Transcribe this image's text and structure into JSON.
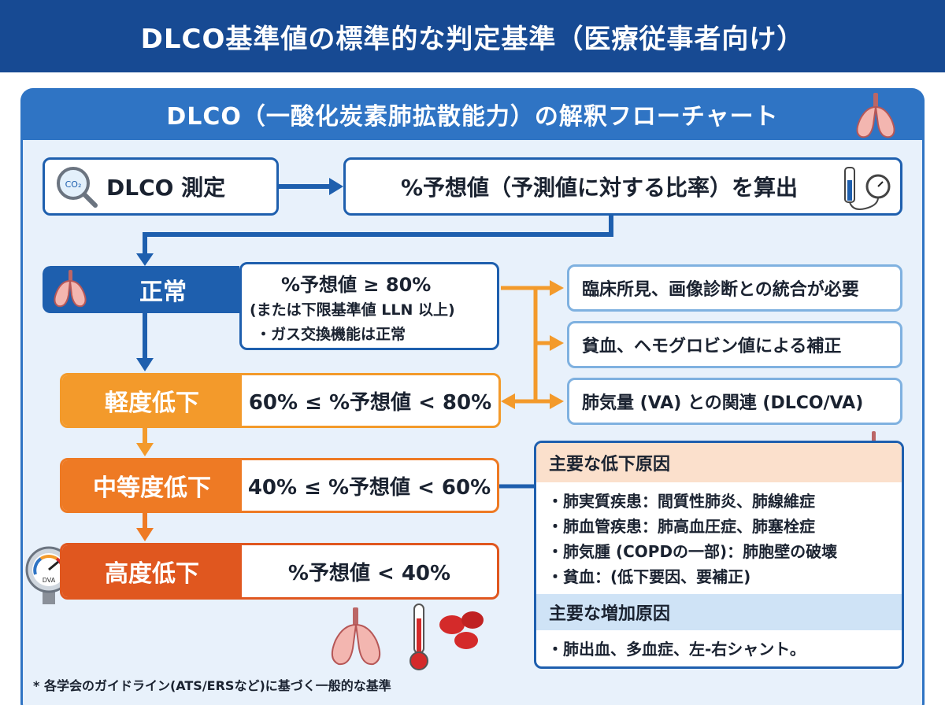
{
  "header": {
    "title": "DLCO基準値の標準的な判定基準（医療従事者向け）"
  },
  "panel": {
    "title": "DLCO（一酸化炭素肺拡散能力）の解釈フローチャート"
  },
  "steps": {
    "measure": "DLCO 測定",
    "calc": "%予想値（予測値に対する比率）を算出",
    "co2_label": "CO₂"
  },
  "grades": [
    {
      "label": "正常",
      "lines": [
        "%予想値 ≥ 80%",
        "(または下限基準値 LLN 以上)",
        "・ガス交換機能は正常"
      ],
      "color": "#1e5fae"
    },
    {
      "label": "軽度低下",
      "value": "60% ≤ %予想値 < 80%",
      "color": "#f39a2b"
    },
    {
      "label": "中等度低下",
      "value": "40% ≤ %予想値 < 60%",
      "color": "#ee7a24"
    },
    {
      "label": "高度低下",
      "value": "%予想値 < 40%",
      "color": "#e0571f"
    }
  ],
  "notes": [
    "臨床所見、画像診断との統合が必要",
    "貧血、ヘモグロビン値による補正",
    "肺気量 (VA) との関連 (DLCO/VA)"
  ],
  "causes": {
    "decrease_title": "主要な低下原因",
    "decrease_items": [
      "・肺実質疾患：間質性肺炎、肺線維症",
      "・肺血管疾患：肺高血圧症、肺塞栓症",
      "・肺気腫 (COPDの一部)：肺胞壁の破壊",
      "・貧血：(低下要因、要補正)"
    ],
    "increase_title": "主要な増加原因",
    "increase_items": [
      "・肺出血、多血症、左-右シャント。"
    ]
  },
  "gauge_label": "DVA",
  "footnote": "* 各学会のガイドライン(ATS/ERSなど)に基づく一般的な基準",
  "colors": {
    "header": "#174a93",
    "accent_blue": "#1e5fae",
    "orange_light": "#f39a2b",
    "orange": "#ee7a24",
    "orange_dark": "#e0571f",
    "lung": "#e88a8a",
    "blood": "#d42a2a"
  }
}
